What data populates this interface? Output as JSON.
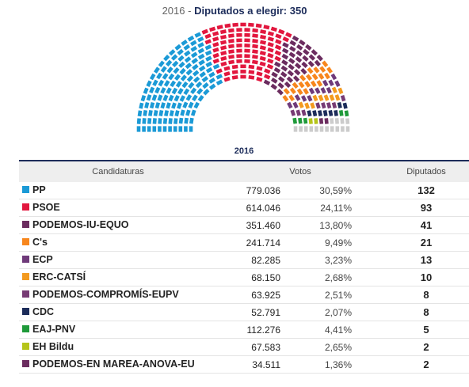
{
  "chart_data": {
    "type": "hemicycle",
    "title": {
      "year": "2016",
      "separator": "-",
      "label": "Diputados a elegir:",
      "total": 350
    },
    "table_title": "2016",
    "headers": [
      "Candidaturas",
      "Votos",
      "Diputados"
    ],
    "parties": [
      {
        "name": "PP",
        "color": "#1b9ad6",
        "votes": {
          "value": 779036,
          "label": "779.036"
        },
        "percent": {
          "value": 30.59,
          "label": "30,59%"
        },
        "seats": 132
      },
      {
        "name": "PSOE",
        "color": "#e2173e",
        "votes": {
          "value": 614046,
          "label": "614.046"
        },
        "percent": {
          "value": 24.11,
          "label": "24,11%"
        },
        "seats": 93
      },
      {
        "name": "PODEMOS-IU-EQUO",
        "color": "#6b2c5f",
        "votes": {
          "value": 351460,
          "label": "351.460"
        },
        "percent": {
          "value": 13.8,
          "label": "13,80%"
        },
        "seats": 41
      },
      {
        "name": "C's",
        "color": "#f7861d",
        "votes": {
          "value": 241714,
          "label": "241.714"
        },
        "percent": {
          "value": 9.49,
          "label": "9,49%"
        },
        "seats": 21
      },
      {
        "name": "ECP",
        "color": "#6f3a7a",
        "votes": {
          "value": 82285,
          "label": "82.285"
        },
        "percent": {
          "value": 3.23,
          "label": "3,23%"
        },
        "seats": 13
      },
      {
        "name": "ERC-CATSÍ",
        "color": "#f39a1f",
        "votes": {
          "value": 68150,
          "label": "68.150"
        },
        "percent": {
          "value": 2.68,
          "label": "2,68%"
        },
        "seats": 10
      },
      {
        "name": "PODEMOS-COMPROMÍS-EUPV",
        "color": "#773b74",
        "votes": {
          "value": 63925,
          "label": "63.925"
        },
        "percent": {
          "value": 2.51,
          "label": "2,51%"
        },
        "seats": 8
      },
      {
        "name": "CDC",
        "color": "#1c2c5a",
        "votes": {
          "value": 52791,
          "label": "52.791"
        },
        "percent": {
          "value": 2.07,
          "label": "2,07%"
        },
        "seats": 8
      },
      {
        "name": "EAJ-PNV",
        "color": "#1f9a3a",
        "votes": {
          "value": 112276,
          "label": "112.276"
        },
        "percent": {
          "value": 4.41,
          "label": "4,41%"
        },
        "seats": 5
      },
      {
        "name": "EH Bildu",
        "color": "#b5c41a",
        "votes": {
          "value": 67583,
          "label": "67.583"
        },
        "percent": {
          "value": 2.65,
          "label": "2,65%"
        },
        "seats": 2
      },
      {
        "name": "PODEMOS-EN MAREA-ANOVA-EU",
        "color": "#6b2c5f",
        "votes": {
          "value": 34511,
          "label": "34.511"
        },
        "percent": {
          "value": 1.36,
          "label": "1,36%"
        },
        "seats": 2
      }
    ]
  }
}
